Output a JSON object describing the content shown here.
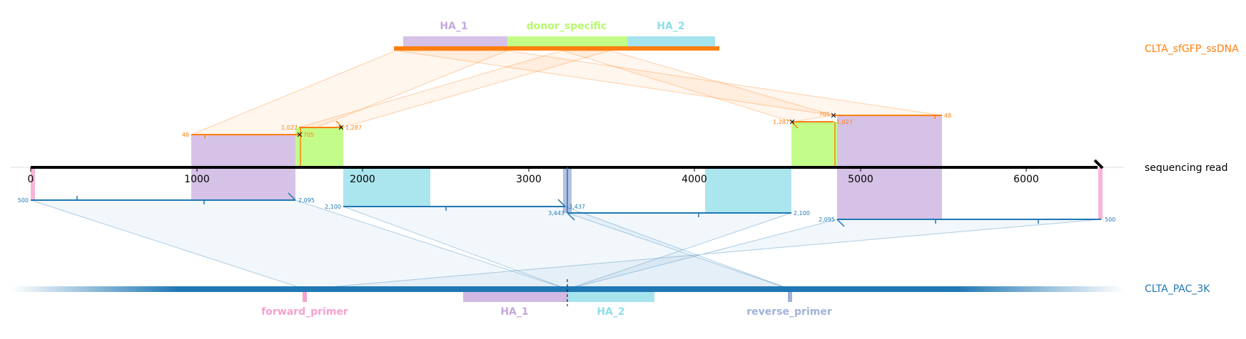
{
  "donor": {
    "name": "CLTA_sfGFP_ssDNA",
    "features": [
      "HA_1",
      "donor_specific",
      "HA_2"
    ]
  },
  "read": {
    "name": "sequencing read",
    "ticks": [
      "0",
      "1000",
      "2000",
      "3000",
      "4000",
      "5000",
      "6000"
    ]
  },
  "target": {
    "name": "CLTA_PAC_3K",
    "features": [
      "forward_primer",
      "HA_1",
      "HA_2",
      "reverse_primer"
    ]
  },
  "donor_alignments": {
    "a1": {
      "start": "48",
      "end": "705"
    },
    "a2": {
      "start": "1,027",
      "end": "1,287"
    },
    "a3": {
      "start": "1,287",
      "end": "705"
    },
    "a4": {
      "start": "1,027",
      "end": "48"
    }
  },
  "target_alignments": {
    "b1": {
      "start": "500",
      "end": "2,095"
    },
    "b2": {
      "start": "2,100",
      "end": "3,437"
    },
    "b3": {
      "start": "3,443",
      "end": "2,100"
    },
    "b4": {
      "start": "2,095",
      "end": "500"
    }
  },
  "colors": {
    "donor": "#ff7f0e",
    "target": "#1f77b4",
    "ha1": "#c5a8dc",
    "donor_specific": "#b5fb6c",
    "ha2": "#8fdde9",
    "forward_primer": "#f7a1d0",
    "reverse_primer": "#a1b1d8"
  }
}
